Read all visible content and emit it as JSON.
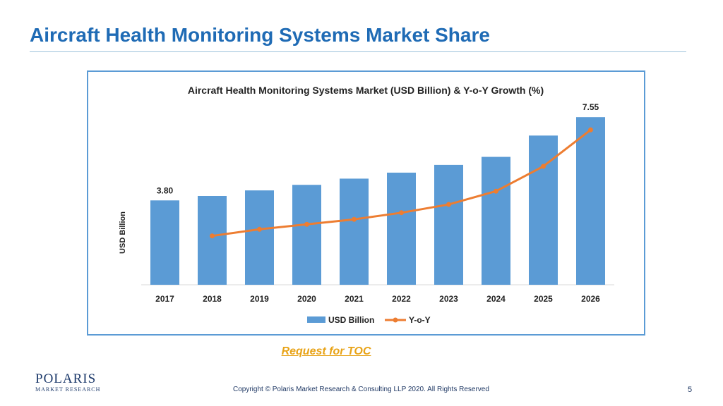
{
  "slide": {
    "title": "Aircraft Health Monitoring Systems Market Share",
    "toc_link": "Request for TOC",
    "logo_main": "POLARIS",
    "logo_sub": "MARKET RESEARCH",
    "copyright": "Copyright © Polaris Market Research & Consulting LLP 2020. All Rights Reserved",
    "page_number": "5"
  },
  "colors": {
    "title": "#1f6bb5",
    "bar": "#5b9bd5",
    "line": "#ed7d31",
    "link": "#e8a317"
  },
  "chart_data": {
    "type": "bar",
    "title": "Aircraft Health Monitoring Systems Market (USD Billion) & Y-o-Y Growth (%)",
    "ylabel": "USD Billion",
    "xlabel": "",
    "categories": [
      "2017",
      "2018",
      "2019",
      "2020",
      "2021",
      "2022",
      "2023",
      "2024",
      "2025",
      "2026"
    ],
    "ylim": [
      0,
      8
    ],
    "grid": false,
    "legend_position": "bottom",
    "series": [
      {
        "name": "USD Billion",
        "type": "bar",
        "values": [
          3.8,
          4.0,
          4.25,
          4.5,
          4.78,
          5.05,
          5.4,
          5.76,
          6.72,
          7.55
        ],
        "data_labels": [
          "3.80",
          null,
          null,
          null,
          null,
          null,
          null,
          null,
          null,
          "7.55"
        ]
      },
      {
        "name": "Y-o-Y",
        "type": "line",
        "secondary_axis": true,
        "values": [
          null,
          1.8,
          2.2,
          2.5,
          2.8,
          3.2,
          3.7,
          4.5,
          6.0,
          8.2
        ]
      }
    ]
  }
}
